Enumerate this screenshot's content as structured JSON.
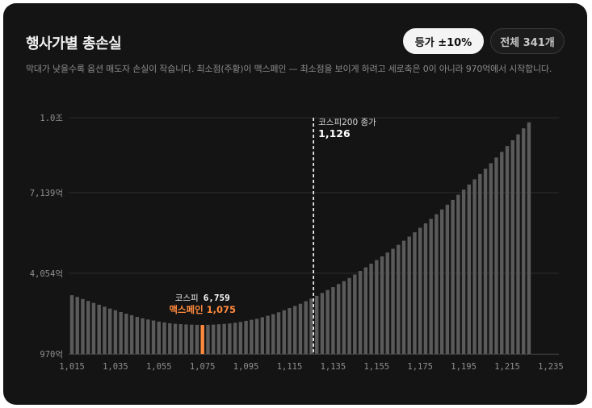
{
  "header": {
    "title": "행사가별 총손실",
    "filter_active": "등가 ±10%",
    "filter_all": "전체 341개",
    "description": "막대가 낮을수록 옵션 매도자 손실이 작습니다. 최소점(주황)이 맥스페인 — 최소점을 보이게 하려고 세로축은 0이 아니라 970억에서 시작합니다."
  },
  "colors": {
    "background": "#141414",
    "bar": "#5a5a5a",
    "highlight": "#ff8a3d",
    "grid": "#2c2c2c",
    "axis_text": "#8f8f8f",
    "text": "#ffffff"
  },
  "chart_data": {
    "type": "bar",
    "x_start": 1015,
    "x_step": 2.5,
    "x_ticks": [
      1015,
      1035,
      1055,
      1075,
      1095,
      1115,
      1135,
      1155,
      1175,
      1195,
      1215,
      1235
    ],
    "x_tick_labels": [
      "1,015",
      "1,035",
      "1,055",
      "1,075",
      "1,095",
      "1,115",
      "1,135",
      "1,155",
      "1,175",
      "1,195",
      "1,215",
      "1,235"
    ],
    "y_ticks": [
      970,
      4054,
      7139,
      10000
    ],
    "y_tick_labels": [
      "970억",
      "4,054억",
      "7,139억",
      "1.0조"
    ],
    "ylim": [
      970,
      10000
    ],
    "values": [
      3216,
      3151,
      3071,
      2996,
      2924,
      2852,
      2779,
      2706,
      2641,
      2575,
      2510,
      2451,
      2386,
      2334,
      2288,
      2249,
      2209,
      2177,
      2144,
      2124,
      2110,
      2097,
      2090,
      2084,
      2077,
      2084,
      2091,
      2104,
      2118,
      2137,
      2164,
      2197,
      2236,
      2275,
      2314,
      2373,
      2432,
      2491,
      2563,
      2641,
      2726,
      2805,
      2890,
      2988,
      3087,
      3191,
      3303,
      3414,
      3526,
      3644,
      3755,
      3874,
      4005,
      4143,
      4281,
      4419,
      4557,
      4702,
      4847,
      4991,
      5142,
      5299,
      5457,
      5621,
      5792,
      5963,
      6134,
      6311,
      6494,
      6676,
      6859,
      7054,
      7250,
      7447,
      7644,
      7848,
      8051,
      8261,
      8478,
      8694,
      8918,
      9141,
      9364,
      9594,
      9824
    ],
    "highlight": {
      "x": 1075,
      "label": "맥스페인 1,075",
      "index_label": "코스피",
      "index_value": "6,759"
    },
    "reference": {
      "x": 1126,
      "label": "코스피200 종가",
      "value": "1,126"
    },
    "grid": true
  }
}
